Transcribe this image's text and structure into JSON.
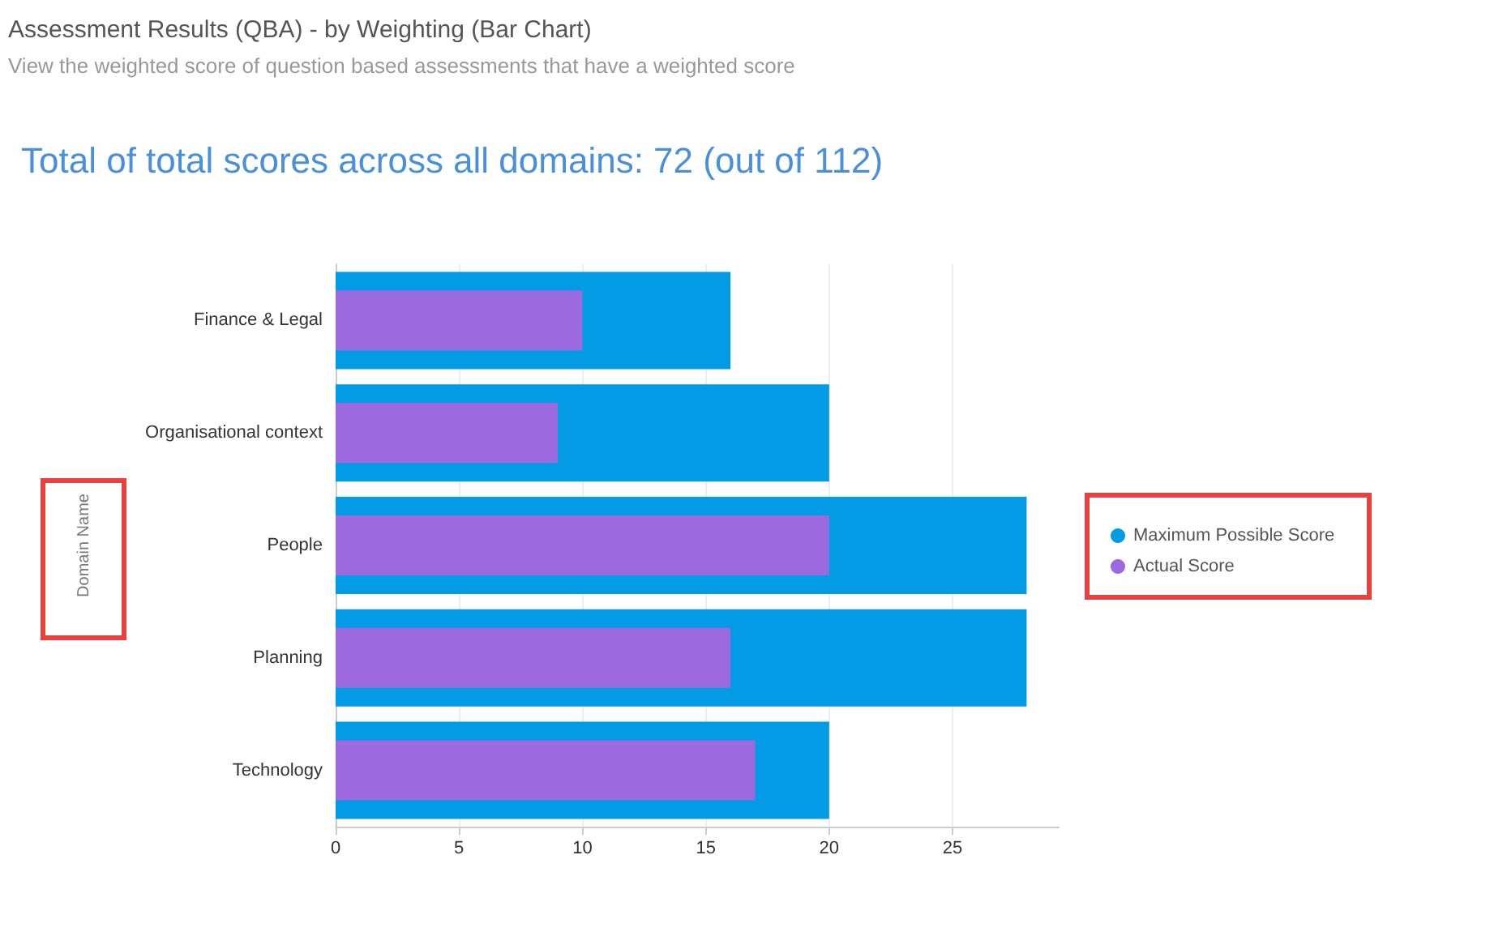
{
  "chart_data": {
    "type": "bar",
    "orientation": "horizontal",
    "title": "Assessment Results (QBA) - by Weighting (Bar Chart)",
    "subtitle": "View the weighted score of question based assessments that have a weighted score",
    "annotations": [
      "Total of total scores across all domains: 72 (out of 112)"
    ],
    "ylabel": "Domain Name",
    "categories": [
      "Finance & Legal",
      "Organisational context",
      "People",
      "Planning",
      "Technology"
    ],
    "series": [
      {
        "name": "Maximum Possible Score",
        "color": "#039be5",
        "values": [
          16,
          20,
          28,
          28,
          20
        ]
      },
      {
        "name": "Actual Score",
        "color": "#9c6ade",
        "values": [
          10,
          9,
          20,
          16,
          17
        ]
      }
    ],
    "xlim": [
      0,
      29.3
    ],
    "xticks": [
      0,
      5,
      10,
      15,
      20,
      25
    ],
    "grid": "x",
    "legend": "right"
  }
}
